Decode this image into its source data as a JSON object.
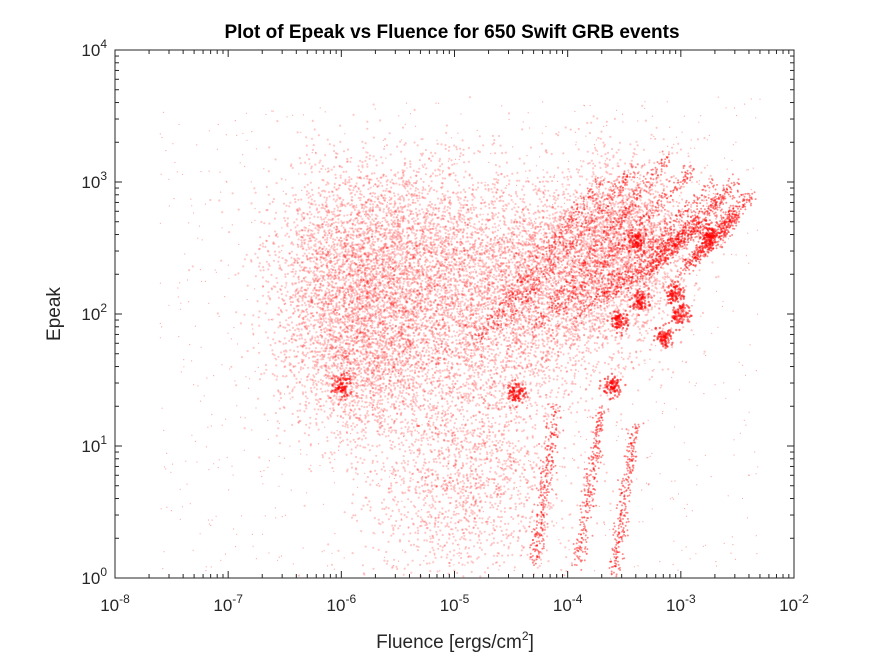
{
  "chart_data": {
    "type": "scatter",
    "title": "Plot of Epeak vs Fluence for 650 Swift GRB events",
    "xlabel": "Fluence [ergs/cm",
    "xlabel_sup": "2",
    "xlabel_suffix": "]",
    "ylabel": "Epeak",
    "xscale": "log",
    "yscale": "log",
    "xlim": [
      1e-08,
      0.01
    ],
    "ylim": [
      1,
      10000
    ],
    "xticks": [
      {
        "base": "10",
        "exp": "-8",
        "value": 1e-08
      },
      {
        "base": "10",
        "exp": "-7",
        "value": 1e-07
      },
      {
        "base": "10",
        "exp": "-6",
        "value": 1e-06
      },
      {
        "base": "10",
        "exp": "-5",
        "value": 1e-05
      },
      {
        "base": "10",
        "exp": "-4",
        "value": 0.0001
      },
      {
        "base": "10",
        "exp": "-3",
        "value": 0.001
      },
      {
        "base": "10",
        "exp": "-2",
        "value": 0.01
      }
    ],
    "yticks": [
      {
        "base": "10",
        "exp": "0",
        "value": 1
      },
      {
        "base": "10",
        "exp": "1",
        "value": 10
      },
      {
        "base": "10",
        "exp": "2",
        "value": 100
      },
      {
        "base": "10",
        "exp": "3",
        "value": 1000
      },
      {
        "base": "10",
        "exp": "4",
        "value": 10000
      }
    ],
    "grid": false,
    "marker_color": "#ff0000",
    "clusters": [
      {
        "log10_fluence": -5.1,
        "log10_epeak": 2.05,
        "spread_x": 0.55,
        "spread_y": 0.45
      },
      {
        "log10_fluence": -4.5,
        "log10_epeak": 2.1,
        "spread_x": 0.5,
        "spread_y": 0.4
      },
      {
        "log10_fluence": -5.4,
        "log10_epeak": 2.5,
        "spread_x": 0.45,
        "spread_y": 0.35
      },
      {
        "log10_fluence": -4.0,
        "log10_epeak": 2.3,
        "spread_x": 0.4,
        "spread_y": 0.35
      },
      {
        "log10_fluence": -5.8,
        "log10_epeak": 1.7,
        "spread_x": 0.35,
        "spread_y": 0.35
      },
      {
        "log10_fluence": -4.9,
        "log10_epeak": 0.8,
        "spread_x": 0.45,
        "spread_y": 0.45
      },
      {
        "log10_fluence": -3.5,
        "log10_epeak": 2.6,
        "spread_x": 0.3,
        "spread_y": 0.3
      },
      {
        "log10_fluence": -6.0,
        "log10_epeak": 2.3,
        "spread_x": 0.35,
        "spread_y": 0.4
      }
    ],
    "streaks": [
      {
        "from": [
          -4.3,
          1.9
        ],
        "to": [
          -3.1,
          3.2
        ]
      },
      {
        "from": [
          -4.1,
          2.0
        ],
        "to": [
          -2.9,
          3.1
        ]
      },
      {
        "from": [
          -3.9,
          2.0
        ],
        "to": [
          -2.7,
          3.0
        ]
      },
      {
        "from": [
          -3.7,
          2.1
        ],
        "to": [
          -2.5,
          3.0
        ]
      },
      {
        "from": [
          -3.5,
          2.2
        ],
        "to": [
          -2.6,
          2.9
        ]
      },
      {
        "from": [
          -3.3,
          2.3
        ],
        "to": [
          -2.8,
          2.7
        ]
      },
      {
        "from": [
          -4.6,
          1.9
        ],
        "to": [
          -3.4,
          3.1
        ]
      },
      {
        "from": [
          -4.8,
          1.8
        ],
        "to": [
          -3.7,
          3.0
        ]
      },
      {
        "from": [
          -3.0,
          2.3
        ],
        "to": [
          -2.4,
          2.9
        ]
      },
      {
        "from": [
          -2.9,
          2.4
        ],
        "to": [
          -2.5,
          2.75
        ]
      },
      {
        "from": [
          -3.4,
          1.15
        ],
        "to": [
          -3.6,
          0.0
        ]
      },
      {
        "from": [
          -3.7,
          1.3
        ],
        "to": [
          -3.9,
          0.1
        ]
      },
      {
        "from": [
          -4.1,
          1.3
        ],
        "to": [
          -4.3,
          0.1
        ]
      }
    ],
    "blobs": [
      [
        -6.0,
        1.45
      ],
      [
        -3.15,
        1.82
      ],
      [
        -3.35,
        2.1
      ],
      [
        -3.55,
        1.95
      ],
      [
        -3.6,
        1.45
      ],
      [
        -4.45,
        1.4
      ],
      [
        -3.4,
        2.55
      ],
      [
        -2.75,
        2.6
      ],
      [
        -3.0,
        2.0
      ],
      [
        -3.05,
        2.15
      ]
    ]
  }
}
